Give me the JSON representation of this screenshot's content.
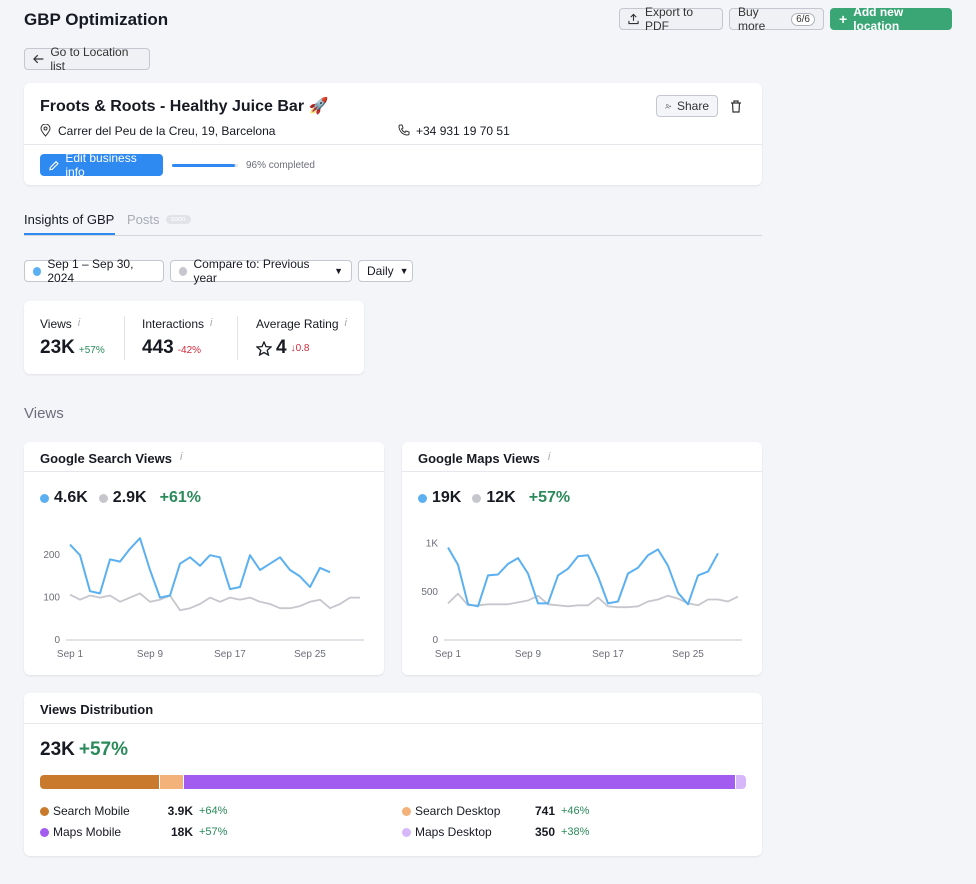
{
  "header": {
    "title": "GBP Optimization",
    "export_label": "Export to PDF",
    "buy_more_label": "Buy more",
    "buy_more_count": "6/6",
    "add_location_label": "Add new location",
    "back_label": "Go to Location list"
  },
  "business": {
    "name": "Froots & Roots - Healthy Juice Bar 🚀",
    "address": "Carrer del Peu de la Creu, 19, Barcelona",
    "phone": "+34 931 19 70 51",
    "share_label": "Share",
    "edit_label": "Edit business info",
    "progress_text": "96% completed",
    "progress": 0.96
  },
  "tabs": [
    {
      "label": "Insights of GBP",
      "active": true
    },
    {
      "label": "Posts",
      "badge": "soon",
      "active": false
    }
  ],
  "filters": {
    "date_range": "Sep 1 – Sep 30, 2024",
    "compare": "Compare to: Previous year",
    "granularity": "Daily"
  },
  "kpis": {
    "views": {
      "label": "Views",
      "value": "23K",
      "delta": "+57%"
    },
    "interactions": {
      "label": "Interactions",
      "value": "443",
      "delta": "-42%"
    },
    "rating": {
      "label": "Average Rating",
      "value": "4",
      "delta": "↓0.8"
    }
  },
  "section_views_title": "Views",
  "search_card": {
    "title": "Google Search Views",
    "current": "4.6K",
    "previous": "2.9K",
    "delta": "+61%"
  },
  "maps_card": {
    "title": "Google Maps Views",
    "current": "19K",
    "previous": "12K",
    "delta": "+57%"
  },
  "distribution": {
    "title": "Views Distribution",
    "total": "23K",
    "delta": "+57%",
    "items": [
      {
        "label": "Search Mobile",
        "value": "3.9K",
        "delta": "+64%",
        "color": "#c97a2c"
      },
      {
        "label": "Search Desktop",
        "value": "741",
        "delta": "+46%",
        "color": "#f2b27a"
      },
      {
        "label": "Maps Mobile",
        "value": "18K",
        "delta": "+57%",
        "color": "#a35cf0"
      },
      {
        "label": "Maps Desktop",
        "value": "350",
        "delta": "+38%",
        "color": "#d6b8fa"
      }
    ],
    "shares": [
      0.17,
      0.033,
      0.786,
      0.015
    ]
  },
  "colors": {
    "accent": "#2e89f0",
    "current": "#5bb0f2",
    "previous": "#c6c7cc",
    "primary_green": "#3aa676"
  },
  "chart_data": [
    {
      "type": "line",
      "title": "Google Search Views",
      "x": [
        1,
        2,
        3,
        4,
        5,
        6,
        7,
        8,
        9,
        10,
        11,
        12,
        13,
        14,
        15,
        16,
        17,
        18,
        19,
        20,
        21,
        22,
        23,
        24,
        25,
        26,
        27,
        28,
        29,
        30
      ],
      "xticks": [
        "Sep 1",
        "Sep 9",
        "Sep 17",
        "Sep 25"
      ],
      "ylim": [
        0,
        250
      ],
      "yticks": [
        "0",
        "100",
        "200"
      ],
      "series": [
        {
          "values": [
            225,
            200,
            115,
            110,
            190,
            185,
            215,
            240,
            165,
            100,
            105,
            180,
            195,
            175,
            200,
            195,
            120,
            125,
            200,
            165,
            180,
            195,
            165,
            150,
            125,
            170,
            160,
            null,
            null,
            null
          ]
        },
        {
          "values": [
            107,
            95,
            105,
            100,
            105,
            90,
            100,
            110,
            90,
            95,
            105,
            70,
            75,
            85,
            100,
            90,
            100,
            95,
            100,
            90,
            85,
            75,
            75,
            80,
            90,
            95,
            75,
            85,
            100,
            100
          ]
        }
      ]
    },
    {
      "type": "line",
      "title": "Google Maps Views",
      "x": [
        1,
        2,
        3,
        4,
        5,
        6,
        7,
        8,
        9,
        10,
        11,
        12,
        13,
        14,
        15,
        16,
        17,
        18,
        19,
        20,
        21,
        22,
        23,
        24,
        25,
        26,
        27,
        28,
        29,
        30
      ],
      "xticks": [
        "Sep 1",
        "Sep 9",
        "Sep 17",
        "Sep 25"
      ],
      "ylim": [
        0,
        1100
      ],
      "yticks": [
        "0",
        "500",
        "1K"
      ],
      "series": [
        {
          "values": [
            960,
            780,
            370,
            350,
            670,
            680,
            790,
            850,
            690,
            380,
            380,
            670,
            740,
            870,
            880,
            660,
            380,
            400,
            690,
            750,
            880,
            940,
            770,
            490,
            370,
            670,
            710,
            900,
            null,
            null
          ]
        },
        {
          "values": [
            380,
            480,
            360,
            360,
            370,
            370,
            370,
            390,
            410,
            460,
            370,
            360,
            350,
            360,
            360,
            440,
            350,
            340,
            340,
            350,
            400,
            420,
            460,
            430,
            380,
            360,
            420,
            420,
            400,
            450
          ]
        }
      ]
    }
  ]
}
